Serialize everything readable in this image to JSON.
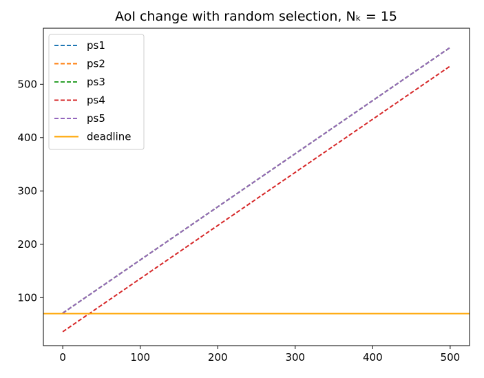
{
  "chart_data": {
    "type": "line",
    "title": "AoI change with random selection, Nₖ = 15",
    "xlabel": "",
    "ylabel": "",
    "xlim": [
      -25,
      525
    ],
    "ylim": [
      10,
      605
    ],
    "xticks": [
      0,
      100,
      200,
      300,
      400,
      500
    ],
    "yticks": [
      100,
      200,
      300,
      400,
      500
    ],
    "grid": false,
    "legend_position": "top-left",
    "series": [
      {
        "name": "ps1",
        "color": "#1f77b4",
        "style": "dashed",
        "x": [
          0,
          500
        ],
        "y": [
          71,
          569
        ]
      },
      {
        "name": "ps2",
        "color": "#ff7f0e",
        "style": "dashed",
        "x": [
          0,
          500
        ],
        "y": [
          71,
          569
        ]
      },
      {
        "name": "ps3",
        "color": "#2ca02c",
        "style": "dashed",
        "x": [
          0,
          500
        ],
        "y": [
          71,
          569
        ]
      },
      {
        "name": "ps4",
        "color": "#d62728",
        "style": "dashed",
        "x": [
          0,
          500
        ],
        "y": [
          36,
          534
        ]
      },
      {
        "name": "ps5",
        "color": "#9467bd",
        "style": "dashed",
        "x": [
          0,
          500
        ],
        "y": [
          71,
          569
        ]
      },
      {
        "name": "deadline",
        "color": "#ffa500",
        "style": "solid",
        "hline": 70
      }
    ]
  }
}
